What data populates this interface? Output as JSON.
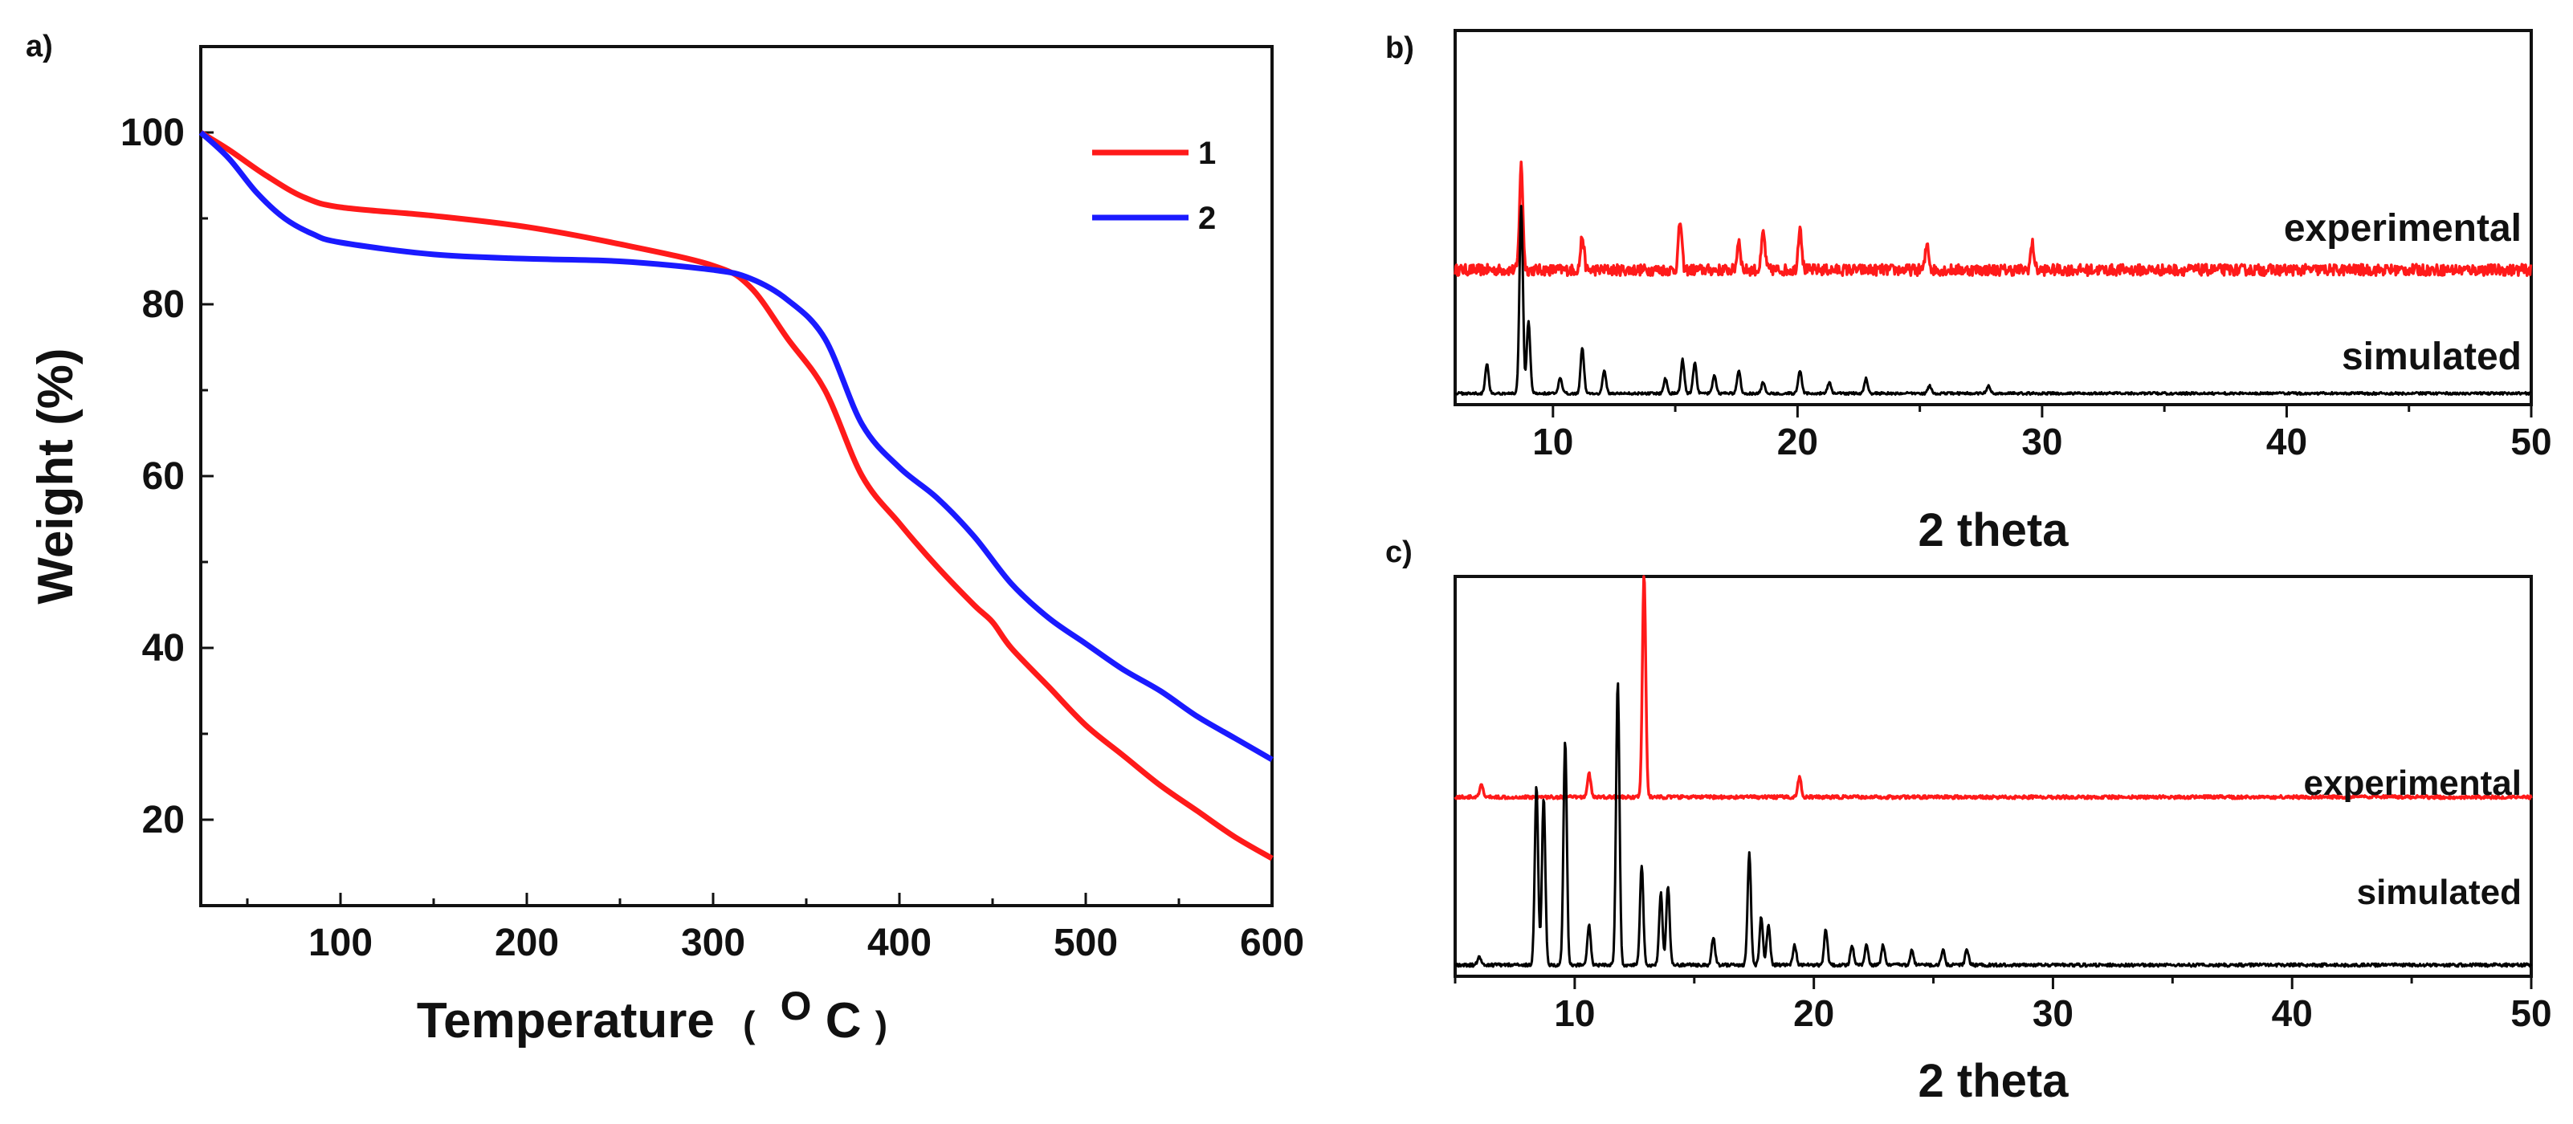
{
  "chart_data": [
    {
      "panel": "a)",
      "type": "line",
      "xlabel": "Temperature",
      "xlabel_unit_open": "(",
      "xlabel_unit_sup": "O",
      "xlabel_unit_letter": "C",
      "xlabel_unit_close": ")",
      "ylabel": "Weight (%)",
      "xlim": [
        25,
        600
      ],
      "ylim": [
        10,
        110
      ],
      "xticks": [
        100,
        200,
        300,
        400,
        500,
        600
      ],
      "yticks": [
        20,
        40,
        60,
        80,
        100
      ],
      "legend_position": "top-right",
      "series": [
        {
          "name": "1",
          "color": "#ff1a1a",
          "x": [
            25,
            40,
            60,
            80,
            100,
            150,
            200,
            250,
            300,
            320,
            340,
            360,
            380,
            400,
            420,
            440,
            450,
            460,
            480,
            500,
            520,
            540,
            560,
            580,
            600
          ],
          "y": [
            100,
            98,
            95,
            92.5,
            91.3,
            90.3,
            89,
            87,
            84.5,
            82,
            76,
            70,
            60,
            54.5,
            49.5,
            45,
            43,
            40,
            35.5,
            31,
            27.5,
            24,
            21,
            18,
            15.5
          ]
        },
        {
          "name": "2",
          "color": "#1a1aff",
          "x": [
            25,
            40,
            55,
            70,
            85,
            100,
            150,
            200,
            250,
            300,
            320,
            340,
            360,
            380,
            400,
            420,
            440,
            460,
            480,
            500,
            520,
            540,
            560,
            580,
            600
          ],
          "y": [
            100,
            97,
            93,
            90,
            88.2,
            87.2,
            85.8,
            85.3,
            85,
            84,
            83,
            80.5,
            76,
            66,
            61,
            57.5,
            53,
            47.5,
            43.5,
            40.5,
            37.5,
            35,
            32,
            29.5,
            27
          ]
        }
      ]
    },
    {
      "panel": "b)",
      "type": "line",
      "xlabel": "2 theta",
      "xlim": [
        6,
        50
      ],
      "xticks": [
        10,
        20,
        30,
        40,
        50
      ],
      "series_labels": [
        "experimental",
        "simulated"
      ],
      "series": [
        {
          "name": "experimental",
          "color": "#ff1a1a",
          "baseline": 0.33,
          "peaks": [
            [
              8.7,
              0.28
            ],
            [
              11.2,
              0.09
            ],
            [
              15.2,
              0.13
            ],
            [
              17.6,
              0.08
            ],
            [
              18.6,
              0.1
            ],
            [
              20.1,
              0.12
            ],
            [
              25.3,
              0.07
            ],
            [
              29.6,
              0.07
            ]
          ]
        },
        {
          "name": "simulated",
          "color": "#000000",
          "baseline": 0.0,
          "peaks": [
            [
              7.3,
              0.08
            ],
            [
              8.7,
              0.5
            ],
            [
              9.0,
              0.19
            ],
            [
              10.3,
              0.04
            ],
            [
              11.2,
              0.12
            ],
            [
              12.1,
              0.06
            ],
            [
              14.6,
              0.04
            ],
            [
              15.3,
              0.09
            ],
            [
              15.8,
              0.08
            ],
            [
              16.6,
              0.05
            ],
            [
              17.6,
              0.06
            ],
            [
              18.6,
              0.03
            ],
            [
              20.1,
              0.06
            ],
            [
              21.3,
              0.03
            ],
            [
              22.8,
              0.04
            ],
            [
              25.4,
              0.02
            ],
            [
              27.8,
              0.02
            ]
          ]
        }
      ]
    },
    {
      "panel": "c)",
      "type": "line",
      "xlabel": "2 theta",
      "xlim": [
        5,
        50
      ],
      "xticks": [
        10,
        20,
        30,
        40,
        50
      ],
      "series_labels": [
        "experimental",
        "simulated"
      ],
      "series": [
        {
          "name": "experimental",
          "color": "#ff1a1a",
          "baseline": 0.42,
          "peaks": [
            [
              6.1,
              0.03
            ],
            [
              10.6,
              0.06
            ],
            [
              12.9,
              0.56
            ],
            [
              19.4,
              0.05
            ]
          ]
        },
        {
          "name": "simulated",
          "color": "#000000",
          "baseline": 0.0,
          "peaks": [
            [
              6.0,
              0.02
            ],
            [
              8.4,
              0.45
            ],
            [
              8.7,
              0.42
            ],
            [
              9.6,
              0.56
            ],
            [
              10.6,
              0.1
            ],
            [
              11.8,
              0.71
            ],
            [
              12.8,
              0.25
            ],
            [
              13.6,
              0.18
            ],
            [
              13.9,
              0.2
            ],
            [
              15.8,
              0.07
            ],
            [
              17.3,
              0.28
            ],
            [
              17.8,
              0.12
            ],
            [
              18.1,
              0.1
            ],
            [
              19.2,
              0.05
            ],
            [
              20.5,
              0.09
            ],
            [
              21.6,
              0.05
            ],
            [
              22.2,
              0.05
            ],
            [
              22.9,
              0.05
            ],
            [
              24.1,
              0.04
            ],
            [
              25.4,
              0.04
            ],
            [
              26.4,
              0.04
            ]
          ]
        }
      ]
    }
  ]
}
